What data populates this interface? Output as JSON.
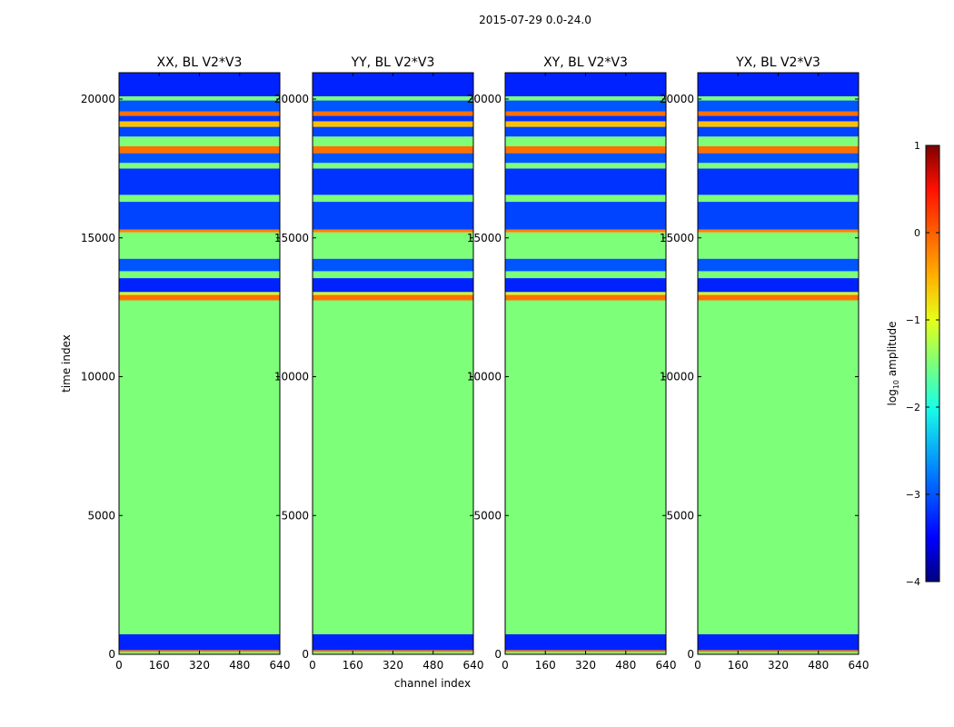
{
  "figure_title": "2015-07-29 0.0-24.0",
  "chart_data": {
    "type": "heatmap",
    "suptitle": "2015-07-29 0.0-24.0",
    "xlabel": "channel index",
    "ylabel": "time index",
    "xlim": [
      0,
      640
    ],
    "ylim": [
      0,
      20950
    ],
    "x_ticks": [
      0,
      160,
      320,
      480,
      640
    ],
    "y_ticks": [
      0,
      5000,
      10000,
      15000,
      20000
    ],
    "panels": [
      {
        "title": "XX, BL V2*V3"
      },
      {
        "title": "YY, BL V2*V3"
      },
      {
        "title": "XY, BL V2*V3"
      },
      {
        "title": "YX, BL V2*V3"
      }
    ],
    "colorbar": {
      "label_prefix": "log",
      "label_sub": "10",
      "label_suffix": " amplitude",
      "range": [
        -4,
        1
      ],
      "ticks": [
        {
          "value": 1,
          "label": "1"
        },
        {
          "value": 0,
          "label": "0"
        },
        {
          "value": -1,
          "label": "−1"
        },
        {
          "value": -2,
          "label": "−2"
        },
        {
          "value": -3,
          "label": "−3"
        },
        {
          "value": -4,
          "label": "−4"
        }
      ],
      "colors": {
        "v_-4": "#00007f",
        "v_-3.5": "#0000ff",
        "v_-2.75": "#007fff",
        "v_-2": "#19ffe6",
        "v_-1.5": "#7dff7a",
        "v_-1": "#e6ff19",
        "v_-0.5": "#ffb000",
        "v_0": "#ff6000",
        "v_0.5": "#ff1000",
        "v_1": "#7f0000"
      }
    },
    "bands": [
      {
        "t0": 0,
        "t1": 80,
        "value": -1.5
      },
      {
        "t0": 80,
        "t1": 150,
        "value": -0.2
      },
      {
        "t0": 150,
        "t1": 720,
        "value": -3.3
      },
      {
        "t0": 720,
        "t1": 12750,
        "value": -1.5
      },
      {
        "t0": 12750,
        "t1": 12950,
        "value": -0.1
      },
      {
        "t0": 12950,
        "t1": 13050,
        "value": -1.1
      },
      {
        "t0": 13050,
        "t1": 13550,
        "value": -3.3
      },
      {
        "t0": 13550,
        "t1": 13800,
        "value": -1.5
      },
      {
        "t0": 13800,
        "t1": 14250,
        "value": -3.0
      },
      {
        "t0": 14250,
        "t1": 15200,
        "value": -1.5
      },
      {
        "t0": 15200,
        "t1": 15300,
        "value": -0.2
      },
      {
        "t0": 15300,
        "t1": 16300,
        "value": -3.1
      },
      {
        "t0": 16300,
        "t1": 16550,
        "value": -1.5
      },
      {
        "t0": 16550,
        "t1": 17500,
        "value": -3.2
      },
      {
        "t0": 17500,
        "t1": 17700,
        "value": -1.5
      },
      {
        "t0": 17700,
        "t1": 18050,
        "value": -3.0
      },
      {
        "t0": 18050,
        "t1": 18300,
        "value": -0.1
      },
      {
        "t0": 18300,
        "t1": 18650,
        "value": -1.5
      },
      {
        "t0": 18650,
        "t1": 19000,
        "value": -3.1
      },
      {
        "t0": 19000,
        "t1": 19200,
        "value": -0.6
      },
      {
        "t0": 19200,
        "t1": 19400,
        "value": -3.2
      },
      {
        "t0": 19400,
        "t1": 19550,
        "value": -0.1
      },
      {
        "t0": 19550,
        "t1": 19950,
        "value": -3.0
      },
      {
        "t0": 19950,
        "t1": 20100,
        "value": -1.5
      },
      {
        "t0": 20100,
        "t1": 20950,
        "value": -3.3
      }
    ]
  }
}
